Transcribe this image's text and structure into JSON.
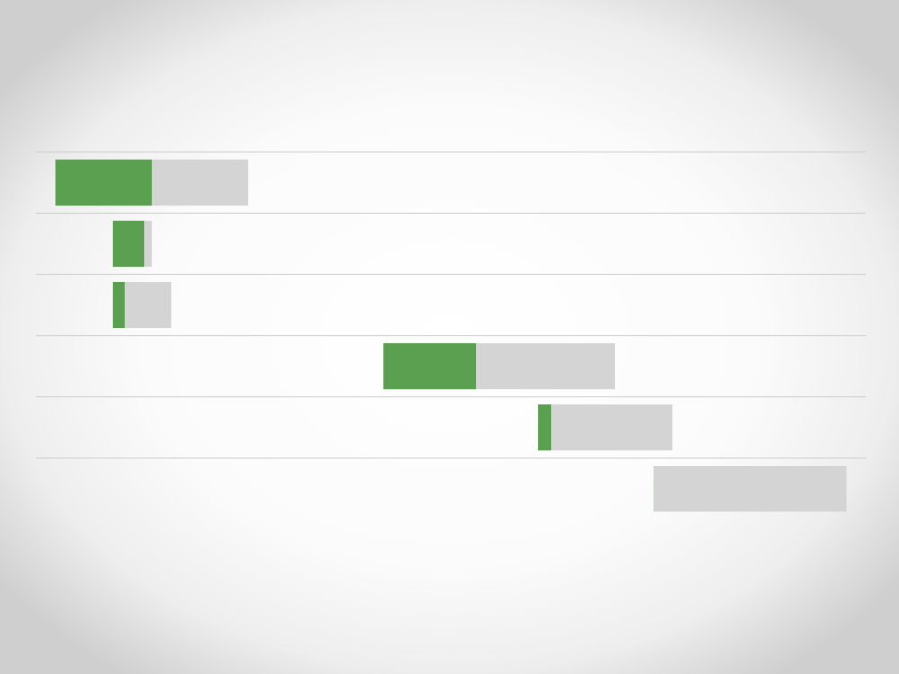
{
  "chart_data": {
    "type": "bar",
    "title": "",
    "xlabel": "",
    "ylabel": "",
    "xlim": [
      0,
      21.5
    ],
    "grid": true,
    "legend": "none",
    "colors": {
      "progress": "#5aa050",
      "remaining": "#d4d4d4",
      "gridline": "#cfcfcf"
    },
    "tasks": [
      {
        "start": 0.5,
        "end": 5.5,
        "progress": 0.5
      },
      {
        "start": 2.0,
        "end": 3.0,
        "progress": 0.8
      },
      {
        "start": 2.0,
        "end": 3.5,
        "progress": 0.2
      },
      {
        "start": 9.0,
        "end": 15.0,
        "progress": 0.4
      },
      {
        "start": 13.0,
        "end": 16.5,
        "progress": 0.1
      },
      {
        "start": 16.0,
        "end": 21.0,
        "progress": 0.0
      }
    ]
  }
}
